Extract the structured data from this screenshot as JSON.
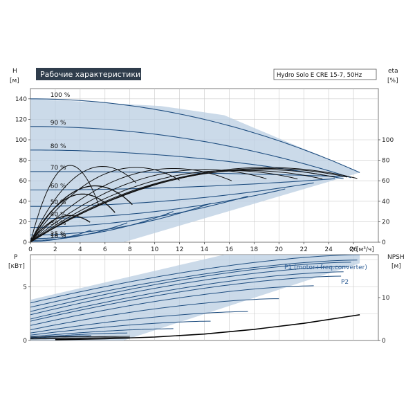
{
  "title": "Рабочие характеристики",
  "model": "Hydro Solo E CRE 15-7, 50Hz",
  "colors": {
    "curve": "#1f4e80",
    "area": "#b9cde2",
    "eff": "#111111",
    "grid": "#c8c8c8",
    "title_bg": "#2f3d4c"
  },
  "chart_data": [
    {
      "type": "line",
      "name": "head",
      "ylabel_top": "H",
      "ylabel_unit": "[м]",
      "y2label_top": "eta",
      "y2label_unit": "[%]",
      "xlabel_name": "Q",
      "xlabel_unit": "[м³/ч]",
      "xlim": [
        0,
        28
      ],
      "ylim": [
        0,
        150
      ],
      "y2lim": [
        0,
        150
      ],
      "xticks": [
        "0",
        "2",
        "4",
        "6",
        "8",
        "10",
        "12",
        "14",
        "16",
        "18",
        "20",
        "22",
        "24",
        "26"
      ],
      "yticks": [
        "0",
        "20",
        "40",
        "60",
        "80",
        "100",
        "120",
        "140"
      ],
      "y2ticks": [
        "0",
        "20",
        "40",
        "60",
        "80",
        "100"
      ],
      "grid": true,
      "speed_curves": [
        {
          "label": "100 %",
          "h0": 140,
          "qmax": 26.5,
          "hmax": 68
        },
        {
          "label": "90 %",
          "h0": 113,
          "qmax": 25.8,
          "hmax": 63
        },
        {
          "label": "80 %",
          "h0": 90,
          "qmax": 25.2,
          "hmax": 62
        },
        {
          "label": "70 %",
          "h0": 69,
          "qmax": 25.5,
          "hmax": 64
        },
        {
          "label": "60 %",
          "h0": 51,
          "qmax": 24.5,
          "hmax": 62
        },
        {
          "label": "50 %",
          "h0": 35,
          "qmax": 22.8,
          "hmax": 58
        },
        {
          "label": "40 %",
          "h0": 23,
          "qmax": 20.5,
          "hmax": 52
        },
        {
          "label": "30 %",
          "h0": 14.5,
          "qmax": 17.5,
          "hmax": 45
        },
        {
          "label": "",
          "h0": 7,
          "qmax": 14.5,
          "hmax": 38
        },
        {
          "label": "25 %",
          "h0": 3.5,
          "qmax": 11.5,
          "hmax": 30
        },
        {
          "label": "16 %",
          "h0": 1.8,
          "qmax": 7.8,
          "hmax": 19
        },
        {
          "label": "",
          "h0": 0.8,
          "qmax": 4.9,
          "hmax": 12
        }
      ],
      "operating_area": [
        [
          0,
          140
        ],
        [
          10.5,
          133
        ],
        [
          15.6,
          124
        ],
        [
          26.5,
          68
        ],
        [
          7.5,
          0
        ],
        [
          0,
          0
        ]
      ],
      "efficiency_curves": [
        {
          "qpeak": 3.2,
          "etapeak": 75,
          "qmax": 5.5
        },
        {
          "qpeak": 5.8,
          "etapeak": 74,
          "qmax": 8.5
        },
        {
          "qpeak": 8.5,
          "etapeak": 73,
          "qmax": 12
        },
        {
          "qpeak": 11.5,
          "etapeak": 72,
          "qmax": 16.2
        },
        {
          "qpeak": 14,
          "etapeak": 71,
          "qmax": 19
        },
        {
          "qpeak": 16,
          "etapeak": 70,
          "qmax": 21.5
        },
        {
          "qpeak": 17.5,
          "etapeak": 70,
          "qmax": 23.5
        },
        {
          "qpeak": 18.5,
          "etapeak": 71,
          "qmax": 24.5
        },
        {
          "qpeak": 19,
          "etapeak": 72,
          "qmax": 25.5
        },
        {
          "qpeak": 19,
          "etapeak": 73,
          "qmax": 26.3
        }
      ],
      "low_eff_curves": [
        {
          "qpeak": 3.2,
          "etapeak": 26,
          "qmax": 4.8
        },
        {
          "qpeak": 4.2,
          "etapeak": 47,
          "qmax": 6.8
        },
        {
          "qpeak": 5.2,
          "etapeak": 55,
          "qmax": 8.2
        }
      ]
    },
    {
      "type": "line",
      "name": "power",
      "ylabel_top": "P",
      "ylabel_unit": "[кВт]",
      "y2label_top": "NPSH",
      "y2label_unit": "[м]",
      "xlim": [
        0,
        28
      ],
      "ylim": [
        0,
        8
      ],
      "y2lim": [
        0,
        20
      ],
      "yticks": [
        "0",
        "5"
      ],
      "y2ticks": [
        "0",
        "10"
      ],
      "grid": true,
      "series_labels": [
        "P1 (motor+freq.converter)",
        "P2"
      ],
      "p1_curves": [
        {
          "p0": 3.5,
          "pmax": 8.0,
          "qmax": 26.5
        },
        {
          "p0": 2.7,
          "pmax": 7.3,
          "qmax": 25.8
        },
        {
          "p0": 2.0,
          "pmax": 6.4,
          "qmax": 25.2
        },
        {
          "p0": 1.4,
          "pmax": 5.1,
          "qmax": 22.8
        },
        {
          "p0": 1.0,
          "pmax": 3.9,
          "qmax": 20.0
        },
        {
          "p0": 0.7,
          "pmax": 2.7,
          "qmax": 17.5
        },
        {
          "p0": 0.5,
          "pmax": 1.8,
          "qmax": 14.5
        },
        {
          "p0": 0.35,
          "pmax": 1.1,
          "qmax": 11.5
        },
        {
          "p0": 0.25,
          "pmax": 0.7,
          "qmax": 7.8
        },
        {
          "p0": 0.2,
          "pmax": 0.45,
          "qmax": 4.9
        }
      ],
      "p2_curves": [
        {
          "p0": 3.1,
          "pmax": 7.5,
          "qmax": 26.3
        },
        {
          "p0": 2.4,
          "pmax": 6.9,
          "qmax": 25.6
        },
        {
          "p0": 1.8,
          "pmax": 6.0,
          "qmax": 25.0
        }
      ],
      "power_area": [
        [
          0,
          3.8
        ],
        [
          15.6,
          8.0
        ],
        [
          26.5,
          8.0
        ],
        [
          26.5,
          7.2
        ],
        [
          7.5,
          0
        ],
        [
          0,
          0
        ]
      ],
      "npsh": {
        "q": [
          2,
          6,
          10,
          14,
          18,
          22,
          26.5
        ],
        "m": [
          0.2,
          0.4,
          0.8,
          1.5,
          2.6,
          4.0,
          6.0
        ]
      }
    }
  ]
}
